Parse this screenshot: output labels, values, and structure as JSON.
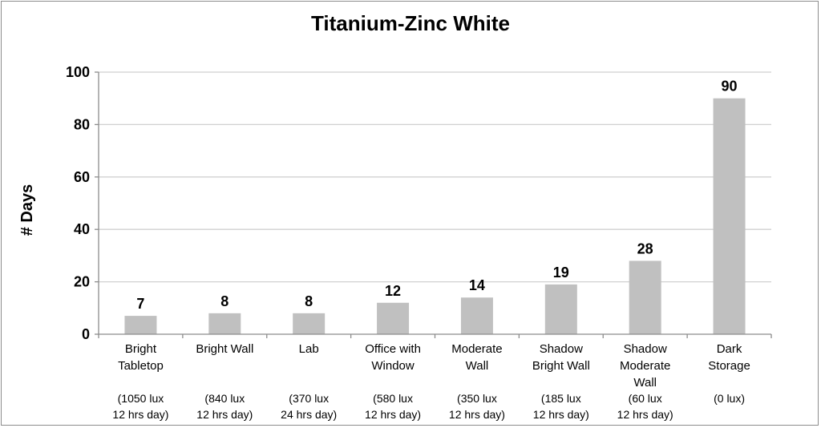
{
  "chart_data": {
    "type": "bar",
    "title": "Titanium-Zinc White",
    "xlabel": "",
    "ylabel": "# Days",
    "ylim": [
      0,
      100
    ],
    "yticks": [
      "0",
      "20",
      "40",
      "60",
      "80",
      "100"
    ],
    "grid": true,
    "legend": "none",
    "colors": {
      "bar": "#c0c0c0",
      "grid": "#d0d0d0",
      "axis": "#8c8c8c"
    },
    "categories": [
      {
        "label": [
          "Bright",
          "Tabletop"
        ],
        "detail": [
          "(1050 lux",
          "12 hrs day)"
        ]
      },
      {
        "label": [
          "Bright Wall"
        ],
        "detail": [
          "(840 lux",
          "12 hrs day)"
        ]
      },
      {
        "label": [
          "Lab"
        ],
        "detail": [
          "(370 lux",
          "24 hrs day)"
        ]
      },
      {
        "label": [
          "Office with",
          "Window"
        ],
        "detail": [
          "(580 lux",
          "12 hrs day)"
        ]
      },
      {
        "label": [
          "Moderate",
          "Wall"
        ],
        "detail": [
          "(350 lux",
          "12 hrs day)"
        ]
      },
      {
        "label": [
          "Shadow",
          "Bright Wall"
        ],
        "detail": [
          "(185 lux",
          "12 hrs day)"
        ]
      },
      {
        "label": [
          "Shadow",
          "Moderate",
          "Wall"
        ],
        "detail": [
          "(60 lux",
          "12 hrs day)"
        ]
      },
      {
        "label": [
          "Dark",
          "Storage"
        ],
        "detail": [
          "(0 lux)"
        ]
      }
    ],
    "values": [
      7,
      8,
      8,
      12,
      14,
      19,
      28,
      90
    ]
  }
}
